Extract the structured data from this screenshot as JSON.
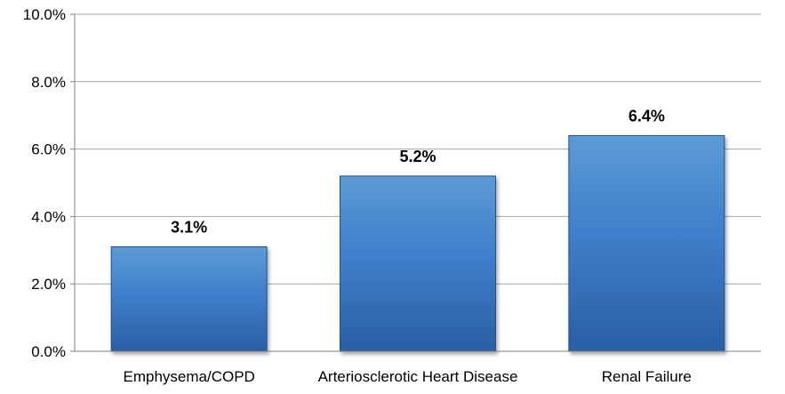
{
  "chart_data": {
    "type": "bar",
    "categories": [
      "Emphysema/COPD",
      "Arteriosclerotic Heart Disease",
      "Renal Failure"
    ],
    "values": [
      3.1,
      5.2,
      6.4
    ],
    "value_labels": [
      "3.1%",
      "5.2%",
      "6.4%"
    ],
    "title": "",
    "xlabel": "",
    "ylabel": "",
    "ylim": [
      0,
      10
    ],
    "yticks": [
      0,
      2,
      4,
      6,
      8,
      10
    ],
    "ytick_labels": [
      "0.0%",
      "2.0%",
      "4.0%",
      "6.0%",
      "8.0%",
      "10.0%"
    ],
    "grid": true,
    "legend": "none",
    "colors": {
      "bar_top": "#5b9bd5",
      "bar_mid": "#3f7fcb",
      "bar_bottom": "#2a5ea4",
      "bar_stroke": "#24508d",
      "grid": "#a6a6a6",
      "axis": "#808080",
      "text": "#000000"
    }
  }
}
